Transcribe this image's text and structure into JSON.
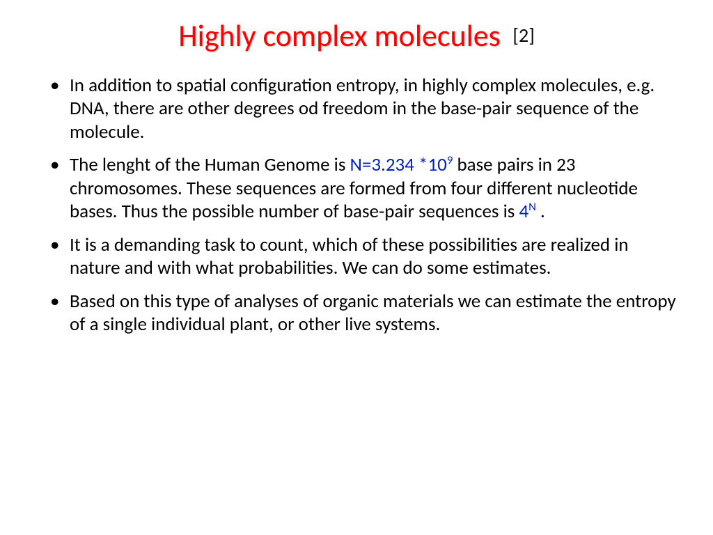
{
  "title": {
    "main": "Highly complex molecules",
    "ref": "[2]",
    "main_color": "#ff0000",
    "ref_color": "#000000",
    "main_fontsize": 44,
    "ref_fontsize": 28
  },
  "bullets": [
    {
      "frag1": "In addition to spatial configuration entropy, in highly complex molecules, e.g. DNA, there are other degrees od freedom in the base-pair sequence of the molecule."
    },
    {
      "frag1": "The lenght of the Human Genome is ",
      "blue1_a": "N=3.234 *10",
      "blue1_sup": "9",
      "frag2": " base pairs in 23 chromosomes. These sequences are formed from four different nucleotide bases. Thus the possible number of base-pair sequences is ",
      "blue2_a": "4",
      "blue2_sup": "N",
      "frag3": " ."
    },
    {
      "frag1": "It is a demanding task to count, which of these possibilities are realized in nature and with what probabilities.  We can do some estimates."
    },
    {
      "frag1": "Based on this type of analyses of organic materials we can estimate the entropy of a single individual plant, or other live systems."
    }
  ],
  "style": {
    "body_fontsize": 27,
    "body_color": "#000000",
    "accent_color": "#0020c0",
    "background": "#ffffff"
  }
}
